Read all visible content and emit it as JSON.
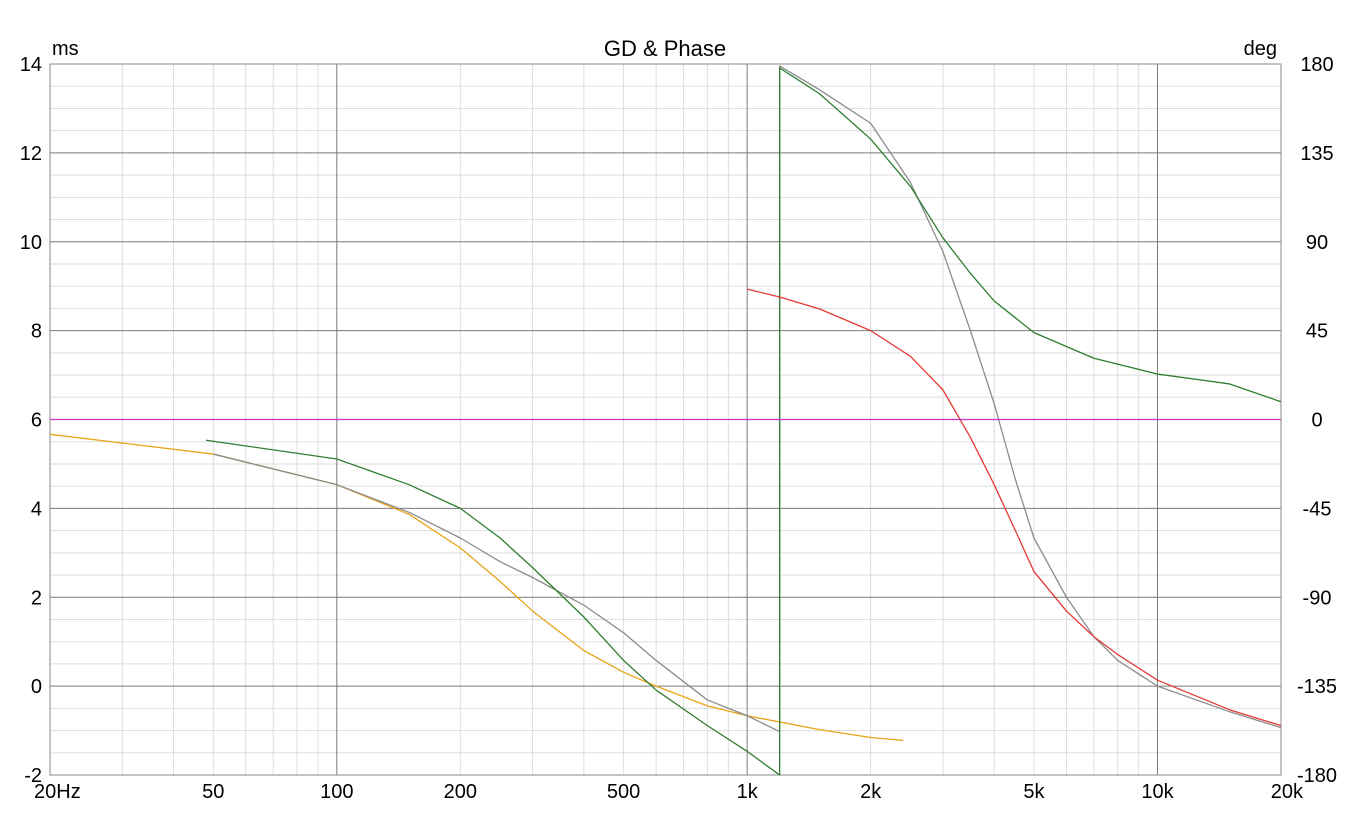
{
  "chart_data": {
    "type": "line",
    "title": "GD & Phase",
    "left_axis": {
      "unit": "ms",
      "range": [
        -2,
        14
      ],
      "ticks": [
        {
          "value": 14,
          "label": "14"
        },
        {
          "value": 12,
          "label": "12"
        },
        {
          "value": 10,
          "label": "10"
        },
        {
          "value": 8,
          "label": "8"
        },
        {
          "value": 6,
          "label": "6"
        },
        {
          "value": 4,
          "label": "4"
        },
        {
          "value": 2,
          "label": "2"
        },
        {
          "value": 0,
          "label": "0"
        },
        {
          "value": -2,
          "label": "-2"
        }
      ]
    },
    "right_axis": {
      "unit": "deg",
      "range": [
        -180,
        180
      ],
      "ticks": [
        {
          "value": 180,
          "label": "180"
        },
        {
          "value": 135,
          "label": "135"
        },
        {
          "value": 90,
          "label": "90"
        },
        {
          "value": 45,
          "label": "45"
        },
        {
          "value": 0,
          "label": "0"
        },
        {
          "value": -45,
          "label": "-45"
        },
        {
          "value": -90,
          "label": "-90"
        },
        {
          "value": -135,
          "label": "-135"
        },
        {
          "value": -180,
          "label": "-180"
        }
      ]
    },
    "x_axis": {
      "scale": "log",
      "range": [
        20,
        20000
      ],
      "ticks": [
        {
          "value": 20,
          "label": "20Hz"
        },
        {
          "value": 50,
          "label": "50"
        },
        {
          "value": 100,
          "label": "100"
        },
        {
          "value": 200,
          "label": "200"
        },
        {
          "value": 500,
          "label": "500"
        },
        {
          "value": 1000,
          "label": "1k"
        },
        {
          "value": 2000,
          "label": "2k"
        },
        {
          "value": 5000,
          "label": "5k"
        },
        {
          "value": 10000,
          "label": "10k"
        },
        {
          "value": 20000,
          "label": "20k"
        }
      ]
    },
    "grid": true,
    "legend": "none",
    "series": [
      {
        "color": "#e8a317",
        "axis": "right",
        "points": [
          [
            20,
            -7.5
          ],
          [
            50,
            -17.5
          ],
          [
            100,
            -33
          ],
          [
            150,
            -48
          ],
          [
            200,
            -65
          ],
          [
            250,
            -82
          ],
          [
            300,
            -97
          ],
          [
            400,
            -117
          ],
          [
            500,
            -128
          ],
          [
            600,
            -135
          ],
          [
            800,
            -145
          ],
          [
            1000,
            -150
          ],
          [
            1500,
            -157
          ],
          [
            2000,
            -161
          ],
          [
            2400,
            -162.5
          ]
        ]
      },
      {
        "color": "#8c8c8c",
        "axis": "right",
        "points": [
          [
            50,
            -17.5
          ],
          [
            100,
            -33
          ],
          [
            150,
            -47
          ],
          [
            200,
            -60
          ],
          [
            250,
            -72
          ],
          [
            300,
            -80
          ],
          [
            400,
            -94
          ],
          [
            500,
            -108
          ],
          [
            600,
            -122
          ],
          [
            800,
            -142
          ],
          [
            1000,
            -150
          ],
          [
            1200,
            -158
          ],
          [
            1200,
            179
          ],
          [
            1500,
            167
          ],
          [
            2000,
            150
          ],
          [
            2500,
            120
          ],
          [
            3000,
            85
          ],
          [
            3500,
            45
          ],
          [
            4000,
            8
          ],
          [
            4500,
            -30
          ],
          [
            5000,
            -60
          ],
          [
            6000,
            -90
          ],
          [
            7000,
            -110
          ],
          [
            8000,
            -122
          ],
          [
            10000,
            -135
          ],
          [
            15000,
            -148
          ],
          [
            20000,
            -156
          ]
        ]
      },
      {
        "color": "#2e7d32",
        "axis": "right",
        "points": [
          [
            48,
            -10.5
          ],
          [
            100,
            -20
          ],
          [
            150,
            -33
          ],
          [
            200,
            -45
          ],
          [
            250,
            -60
          ],
          [
            300,
            -75
          ],
          [
            400,
            -100
          ],
          [
            500,
            -122
          ],
          [
            600,
            -137
          ],
          [
            800,
            -155
          ],
          [
            1000,
            -168
          ],
          [
            1200,
            -180
          ],
          [
            1200,
            178
          ],
          [
            1500,
            165
          ],
          [
            2000,
            142
          ],
          [
            2500,
            118
          ],
          [
            3000,
            92
          ],
          [
            3500,
            74
          ],
          [
            4000,
            60
          ],
          [
            5000,
            44
          ],
          [
            7000,
            31
          ],
          [
            10000,
            23
          ],
          [
            15000,
            18
          ],
          [
            20000,
            9
          ]
        ]
      },
      {
        "color": "#e53935",
        "axis": "right",
        "points": [
          [
            1000,
            66
          ],
          [
            1200,
            62
          ],
          [
            1500,
            56
          ],
          [
            2000,
            45
          ],
          [
            2500,
            32
          ],
          [
            3000,
            15
          ],
          [
            3500,
            -9
          ],
          [
            4000,
            -33
          ],
          [
            4500,
            -56
          ],
          [
            5000,
            -77
          ],
          [
            6000,
            -97
          ],
          [
            7000,
            -110
          ],
          [
            8000,
            -119
          ],
          [
            10000,
            -132
          ],
          [
            15000,
            -147
          ],
          [
            20000,
            -155
          ]
        ]
      },
      {
        "color": "#cc33cc",
        "axis": "right",
        "points": [
          [
            20,
            0
          ],
          [
            20000,
            0
          ]
        ]
      }
    ]
  }
}
